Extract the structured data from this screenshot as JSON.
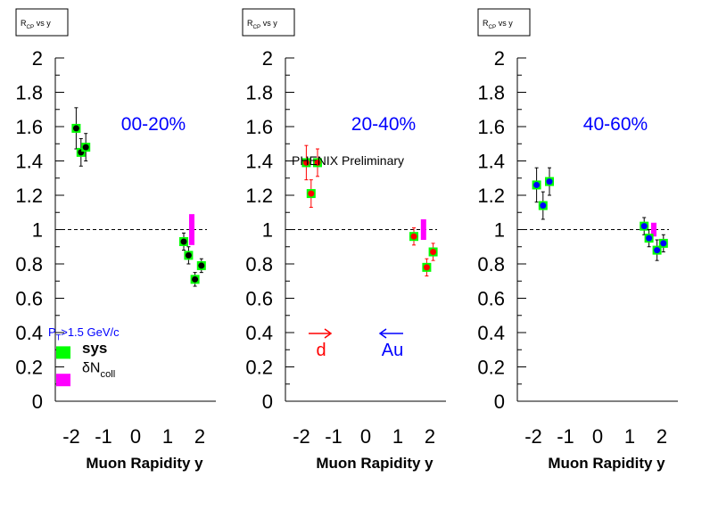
{
  "panels": [
    {
      "title_box": "R_CP vs y",
      "centrality": "00-20%",
      "centrality_color": "#0000ff",
      "point_color": "#000000",
      "err_color": "#000000",
      "xlabel": "Muon Rapidity y",
      "pt_label": "P_T>1.5 GeV/c",
      "legend": [
        {
          "label": "sys",
          "color": "#00ff00"
        },
        {
          "label": "δN_coll",
          "color": "#ff00ff"
        }
      ]
    },
    {
      "title_box": "R_CP vs y",
      "centrality": "20-40%",
      "centrality_color": "#0000ff",
      "point_color": "#ff0000",
      "err_color": "#ff0000",
      "xlabel": "Muon Rapidity y",
      "preliminary": "PHENIX Preliminary",
      "arrow_d": {
        "label": "d",
        "color": "#ff0000"
      },
      "arrow_au": {
        "label": "Au",
        "color": "#0000ff"
      }
    },
    {
      "title_box": "R_CP vs y",
      "centrality": "40-60%",
      "centrality_color": "#0000ff",
      "point_color": "#0000ff",
      "err_color": "#000000",
      "xlabel": "Muon Rapidity y"
    }
  ],
  "chart_data": [
    {
      "type": "scatter",
      "title": "R_CP vs y",
      "xlabel": "Muon Rapidity y",
      "ylabel": "",
      "xlim": [
        -2.5,
        2.5
      ],
      "ylim": [
        0,
        2
      ],
      "xticks": [
        "-2",
        "-1",
        "0",
        "1",
        "2"
      ],
      "yticks": [
        "0",
        "0.2",
        "0.4",
        "0.6",
        "0.8",
        "1",
        "1.2",
        "1.4",
        "1.6",
        "1.8",
        "2"
      ],
      "series": [
        {
          "name": "00-20%",
          "points": [
            {
              "x": -1.85,
              "y": 1.59,
              "err": 0.12
            },
            {
              "x": -1.7,
              "y": 1.45,
              "err": 0.08
            },
            {
              "x": -1.55,
              "y": 1.48,
              "err": 0.08
            },
            {
              "x": 1.5,
              "y": 0.93,
              "err": 0.05
            },
            {
              "x": 1.65,
              "y": 0.85,
              "err": 0.05
            },
            {
              "x": 1.85,
              "y": 0.71,
              "err": 0.04
            },
            {
              "x": 2.05,
              "y": 0.79,
              "err": 0.04
            }
          ]
        }
      ],
      "ncoll_band": {
        "x": 1.75,
        "low": 0.91,
        "high": 1.09
      }
    },
    {
      "type": "scatter",
      "title": "R_CP vs y",
      "xlabel": "Muon Rapidity y",
      "ylabel": "",
      "xlim": [
        -2.5,
        2.5
      ],
      "ylim": [
        0,
        2
      ],
      "xticks": [
        "-2",
        "-1",
        "0",
        "1",
        "2"
      ],
      "yticks": [
        "0",
        "0.2",
        "0.4",
        "0.6",
        "0.8",
        "1",
        "1.2",
        "1.4",
        "1.6",
        "1.8",
        "2"
      ],
      "series": [
        {
          "name": "20-40%",
          "points": [
            {
              "x": -1.85,
              "y": 1.39,
              "err": 0.1
            },
            {
              "x": -1.7,
              "y": 1.21,
              "err": 0.08
            },
            {
              "x": -1.5,
              "y": 1.39,
              "err": 0.08
            },
            {
              "x": 1.5,
              "y": 0.96,
              "err": 0.05
            },
            {
              "x": 1.9,
              "y": 0.78,
              "err": 0.05
            },
            {
              "x": 2.1,
              "y": 0.87,
              "err": 0.05
            }
          ]
        }
      ],
      "ncoll_band": {
        "x": 1.8,
        "low": 0.94,
        "high": 1.06
      }
    },
    {
      "type": "scatter",
      "title": "R_CP vs y",
      "xlabel": "Muon Rapidity y",
      "ylabel": "",
      "xlim": [
        -2.5,
        2.5
      ],
      "ylim": [
        0,
        2
      ],
      "xticks": [
        "-2",
        "-1",
        "0",
        "1",
        "2"
      ],
      "yticks": [
        "0",
        "0.2",
        "0.4",
        "0.6",
        "0.8",
        "1",
        "1.2",
        "1.4",
        "1.6",
        "1.8",
        "2"
      ],
      "series": [
        {
          "name": "40-60%",
          "points": [
            {
              "x": -1.9,
              "y": 1.26,
              "err": 0.1
            },
            {
              "x": -1.7,
              "y": 1.14,
              "err": 0.08
            },
            {
              "x": -1.5,
              "y": 1.28,
              "err": 0.08
            },
            {
              "x": 1.45,
              "y": 1.02,
              "err": 0.05
            },
            {
              "x": 1.6,
              "y": 0.95,
              "err": 0.05
            },
            {
              "x": 1.85,
              "y": 0.88,
              "err": 0.06
            },
            {
              "x": 2.05,
              "y": 0.92,
              "err": 0.05
            }
          ]
        }
      ],
      "ncoll_band": {
        "x": 1.75,
        "low": 0.96,
        "high": 1.04
      }
    }
  ]
}
